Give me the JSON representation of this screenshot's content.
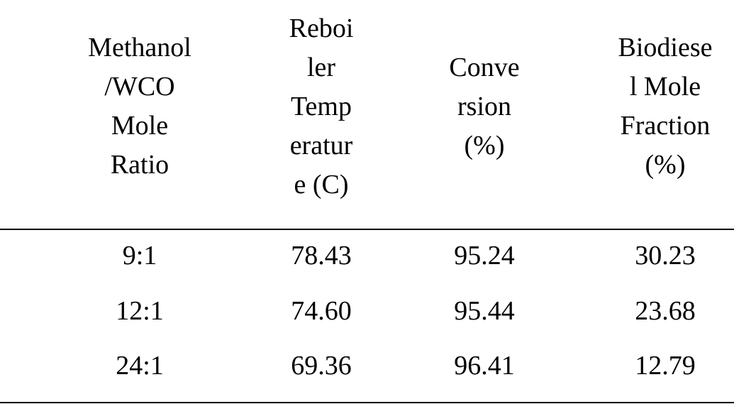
{
  "table": {
    "header": [
      [
        "Methanol",
        "/WCO",
        "Mole",
        "Ratio"
      ],
      [
        "Reboi",
        "ler",
        "Temp",
        "eratur",
        "e (C)"
      ],
      [
        "Conve",
        "rsion",
        "(%)"
      ],
      [
        "Biodiese",
        "l Mole",
        "Fraction",
        "(%)"
      ]
    ],
    "rows": [
      [
        "9:1",
        "78.43",
        "95.24",
        "30.23"
      ],
      [
        "12:1",
        "74.60",
        "95.44",
        "23.68"
      ],
      [
        "24:1",
        "69.36",
        "96.41",
        "12.79"
      ]
    ]
  }
}
